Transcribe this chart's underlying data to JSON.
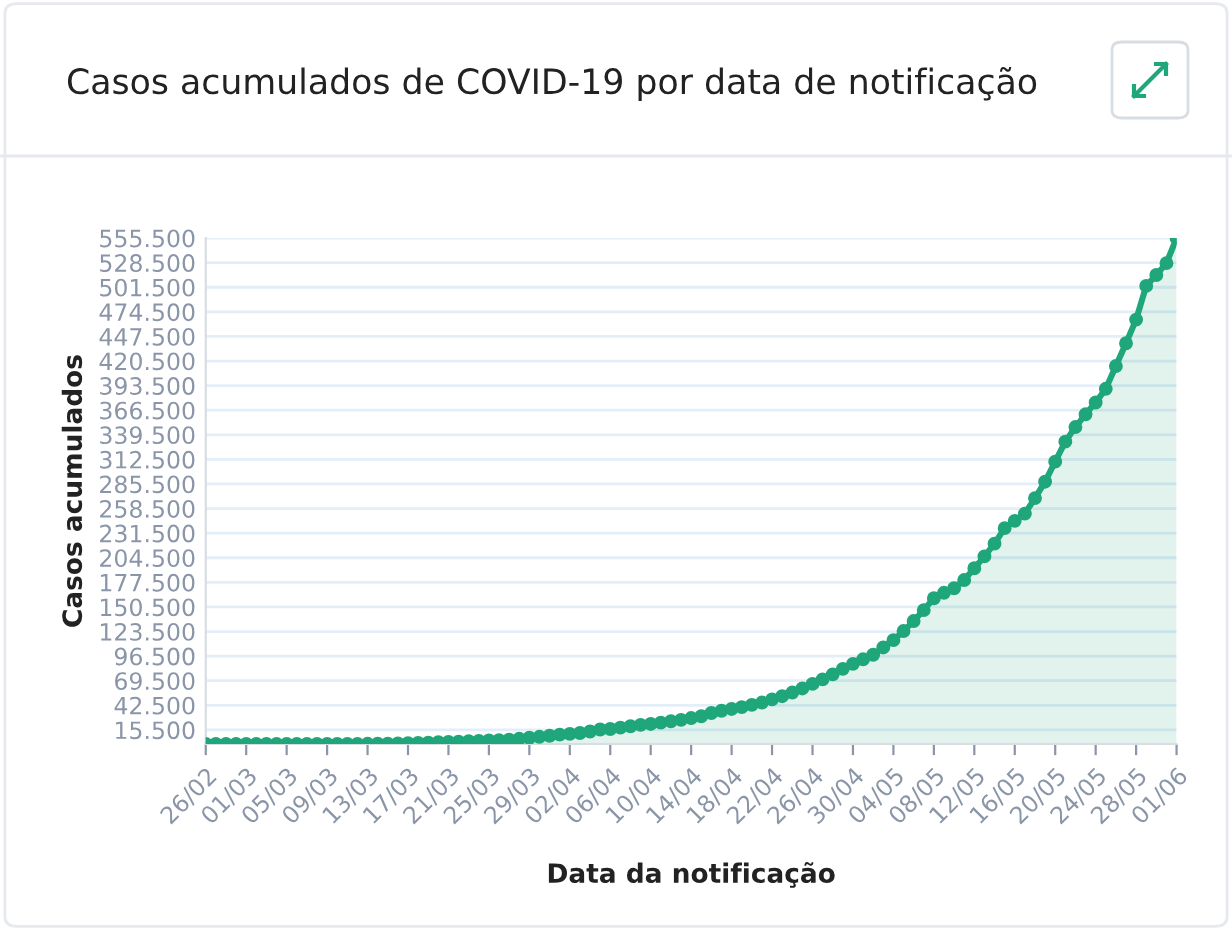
{
  "chart_data": {
    "type": "area",
    "title": "Casos acumulados de COVID-19 por data de notificação",
    "xlabel": "Data da notificação",
    "ylabel": "Casos acumulados",
    "categories": [
      "26/02",
      null,
      null,
      null,
      "01/03",
      null,
      null,
      null,
      "05/03",
      null,
      null,
      null,
      "09/03",
      null,
      null,
      null,
      "13/03",
      null,
      null,
      null,
      "17/03",
      null,
      null,
      null,
      "21/03",
      null,
      null,
      null,
      "25/03",
      null,
      null,
      null,
      "29/03",
      null,
      null,
      null,
      "02/04",
      null,
      null,
      null,
      "06/04",
      null,
      null,
      null,
      "10/04",
      null,
      null,
      null,
      "14/04",
      null,
      null,
      null,
      "18/04",
      null,
      null,
      null,
      "22/04",
      null,
      null,
      null,
      "26/04",
      null,
      null,
      null,
      "30/04",
      null,
      null,
      null,
      "04/05",
      null,
      null,
      null,
      "08/05",
      null,
      null,
      null,
      "12/05",
      null,
      null,
      null,
      "16/05",
      null,
      null,
      null,
      "20/05",
      null,
      null,
      null,
      "24/05",
      null,
      null,
      null,
      "28/05",
      null,
      null,
      null,
      "01/06"
    ],
    "series": [
      {
        "color": "#1fa67a",
        "values": [
          1,
          1,
          1,
          2,
          2,
          2,
          3,
          8,
          13,
          19,
          25,
          34,
          52,
          77,
          98,
          121,
          200,
          291,
          428,
          621,
          904,
          1128,
          1546,
          1924,
          2247,
          2554,
          2985,
          3417,
          3904,
          4256,
          4661,
          5717,
          6836,
          7910,
          9056,
          10278,
          11130,
          12056,
          13717,
          15927,
          16500,
          18000,
          19500,
          21000,
          22000,
          23500,
          25000,
          26500,
          28500,
          30500,
          34000,
          36500,
          38500,
          40500,
          43000,
          45500,
          49000,
          52500,
          56500,
          61000,
          66000,
          71000,
          76500,
          82500,
          88000,
          93000,
          98000,
          106000,
          114000,
          124000,
          135000,
          147000,
          160000,
          166000,
          171000,
          180000,
          193000,
          206000,
          220000,
          237000,
          245000,
          253000,
          270000,
          288000,
          310000,
          332000,
          348000,
          362000,
          375000,
          390000,
          415000,
          440000,
          466000,
          503000,
          515000,
          528000,
          555500
        ]
      }
    ],
    "ylim": [
      0,
      555500
    ],
    "yticks": [
      {
        "value": 15500,
        "label": "15.500"
      },
      {
        "value": 42500,
        "label": "42.500"
      },
      {
        "value": 69500,
        "label": "69.500"
      },
      {
        "value": 96500,
        "label": "96.500"
      },
      {
        "value": 123500,
        "label": "123.500"
      },
      {
        "value": 150500,
        "label": "150.500"
      },
      {
        "value": 177500,
        "label": "177.500"
      },
      {
        "value": 204500,
        "label": "204.500"
      },
      {
        "value": 231500,
        "label": "231.500"
      },
      {
        "value": 258500,
        "label": "258.500"
      },
      {
        "value": 285500,
        "label": "285.500"
      },
      {
        "value": 312500,
        "label": "312.500"
      },
      {
        "value": 339500,
        "label": "339.500"
      },
      {
        "value": 366500,
        "label": "366.500"
      },
      {
        "value": 393500,
        "label": "393.500"
      },
      {
        "value": 420500,
        "label": "420.500"
      },
      {
        "value": 447500,
        "label": "447.500"
      },
      {
        "value": 474500,
        "label": "474.500"
      },
      {
        "value": 501500,
        "label": "501.500"
      },
      {
        "value": 528500,
        "label": "528.500"
      },
      {
        "value": 555500,
        "label": "555.500"
      }
    ],
    "grid": "y",
    "marker": "circle",
    "line_style": "solid"
  }
}
